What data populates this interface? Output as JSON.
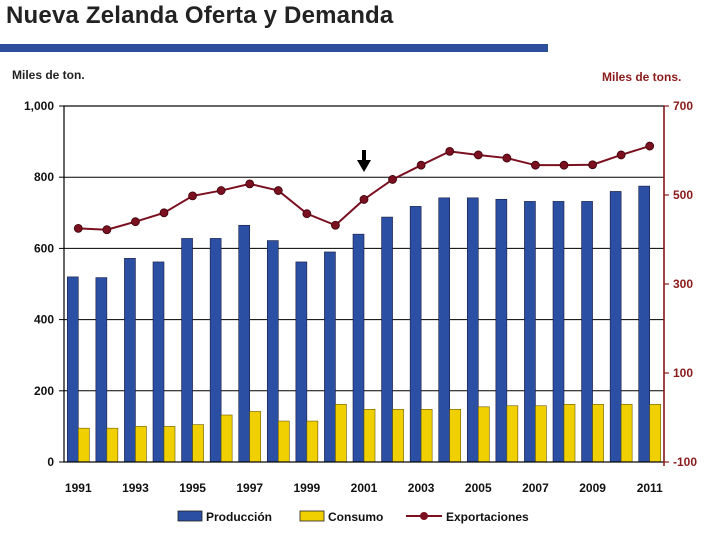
{
  "title": "Nueva Zelanda Oferta y Demanda",
  "colors": {
    "title_bar": "#2e4f9c",
    "produccion": "#2b4fa3",
    "consumo": "#f0d000",
    "exportaciones": "#7a1020",
    "right_axis": "#8b1a1a"
  },
  "chart_data": {
    "type": "bar+line",
    "title": "Nueva Zelanda Oferta y Demanda",
    "left_axis_label": "Miles de ton.",
    "right_axis_label": "Miles de tons.",
    "left_ylim": [
      0,
      1000
    ],
    "right_ylim": [
      -100,
      700
    ],
    "left_ticks": [
      "0",
      "200",
      "400",
      "600",
      "800",
      "1,000"
    ],
    "right_ticks": [
      "-100",
      "100",
      "300",
      "500",
      "700"
    ],
    "categories": [
      "1991",
      "1992",
      "1993",
      "1994",
      "1995",
      "1996",
      "1997",
      "1998",
      "1999",
      "2000",
      "2001",
      "2002",
      "2003",
      "2004",
      "2005",
      "2006",
      "2007",
      "2008",
      "2009",
      "2010",
      "2011"
    ],
    "x_tick_labels": [
      "1991",
      "1993",
      "1995",
      "1997",
      "1999",
      "2001",
      "2003",
      "2005",
      "2007",
      "2009",
      "2011"
    ],
    "series": [
      {
        "name": "Producción",
        "type": "bar",
        "axis": "left",
        "values": [
          520,
          518,
          572,
          562,
          628,
          628,
          665,
          622,
          562,
          590,
          640,
          688,
          718,
          742,
          742,
          738,
          732,
          732,
          732,
          760,
          775
        ]
      },
      {
        "name": "Consumo",
        "type": "bar",
        "axis": "left",
        "values": [
          95,
          95,
          100,
          100,
          105,
          132,
          142,
          115,
          115,
          162,
          148,
          148,
          148,
          148,
          155,
          158,
          158,
          162,
          162,
          162,
          162
        ]
      },
      {
        "name": "Exportaciones",
        "type": "line",
        "axis": "right",
        "values": [
          425,
          422,
          440,
          460,
          498,
          510,
          525,
          510,
          458,
          432,
          490,
          535,
          567,
          598,
          590,
          583,
          567,
          567,
          568,
          590,
          610
        ]
      }
    ],
    "annotation": {
      "type": "arrow-down",
      "at": "2001"
    },
    "legend": [
      "Producción",
      "Consumo",
      "Exportaciones"
    ]
  }
}
